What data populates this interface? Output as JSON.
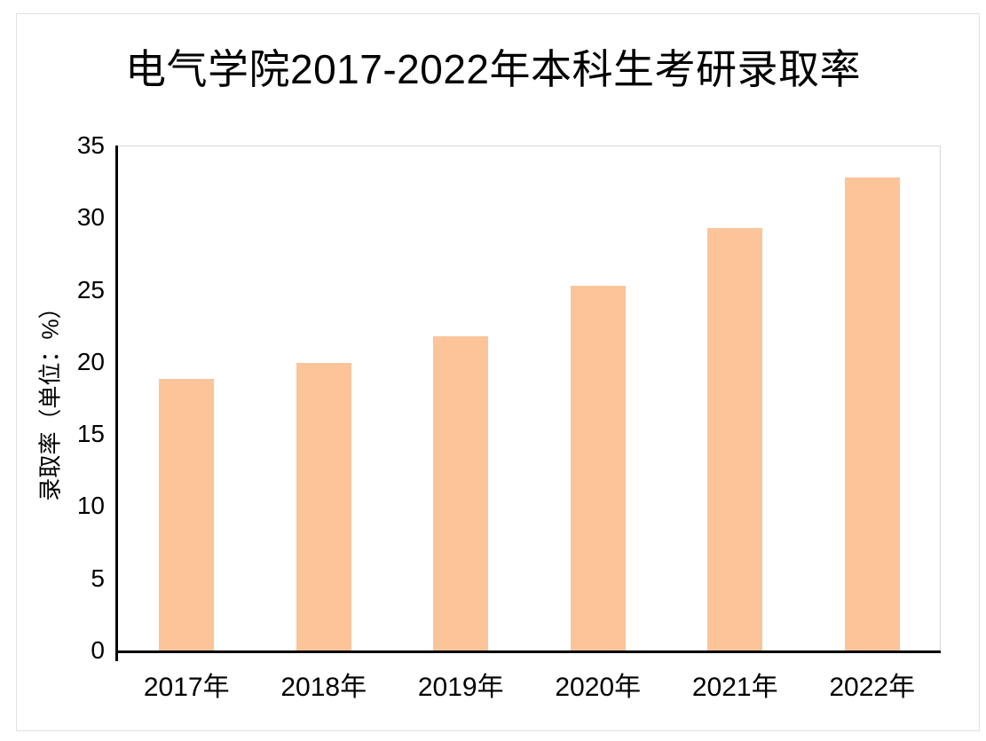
{
  "chart_data": {
    "type": "bar",
    "title": "电气学院2017-2022年本科生考研录取率",
    "categories": [
      "2017年",
      "2018年",
      "2019年",
      "2020年",
      "2021年",
      "2022年"
    ],
    "values": [
      18.8,
      19.9,
      21.8,
      25.3,
      29.3,
      32.8
    ],
    "xlabel": "",
    "ylabel": "录取率（单位：%）",
    "ylim": [
      0,
      35
    ],
    "yticks": [
      0,
      5,
      10,
      15,
      20,
      25,
      30,
      35
    ],
    "grid": false,
    "legend_position": "none",
    "bar_color": "#FCC499",
    "axis_color": "#000000",
    "frame_color": "#D9D9D9"
  }
}
